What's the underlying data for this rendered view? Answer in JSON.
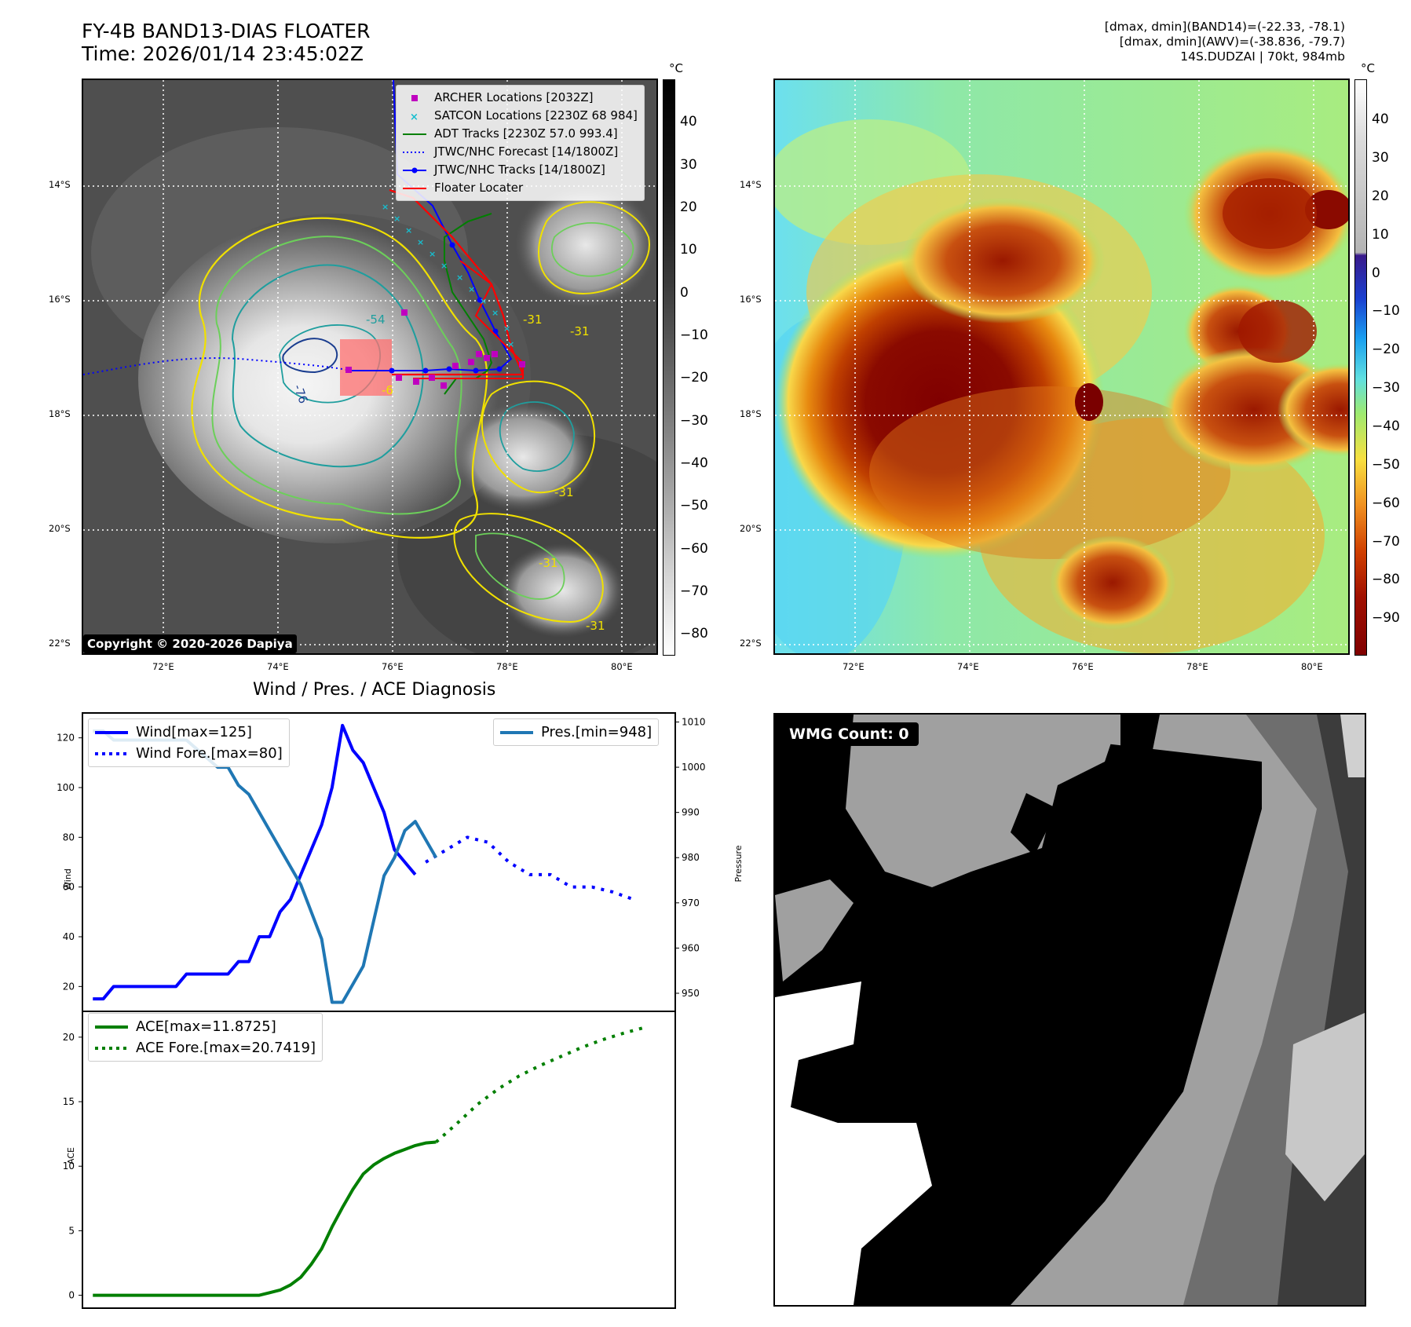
{
  "header": {
    "title_line1": "FY-4B BAND13-DIAS FLOATER",
    "title_line2": "Time: 2026/01/14 23:45:02Z",
    "info_line1": "[dmax, dmin](BAND14)=(-22.33, -78.1)",
    "info_line2": "[dmax, dmin](AWV)=(-38.836, -79.7)",
    "info_line3": "14S.DUDZAI | 70kt, 984mb"
  },
  "map": {
    "lat_labels": [
      "14°S",
      "16°S",
      "18°S",
      "20°S",
      "22°S"
    ],
    "lon_labels": [
      "72°E",
      "74°E",
      "76°E",
      "78°E",
      "80°E"
    ],
    "copyright": "Copyright © 2020-2026 Dapiya",
    "contour_labels": [
      "-54",
      "-76",
      "-31",
      "-31",
      "-31",
      "-31",
      "-31",
      "-6"
    ],
    "legend": [
      {
        "label": "ARCHER Locations [2032Z]",
        "color": "#bf00bf"
      },
      {
        "label": "SATCON Locations [2230Z 68 984]",
        "color": "#17becf"
      },
      {
        "label": "ADT Tracks [2230Z 57.0 993.4]",
        "color": "#007f00"
      },
      {
        "label": "JTWC/NHC Forecast [14/1800Z]",
        "color": "#0000ff"
      },
      {
        "label": "JTWC/NHC Tracks [14/1800Z]",
        "color": "#0000ff"
      },
      {
        "label": "Floater Locater",
        "color": "#ff0000"
      }
    ]
  },
  "colorbar_left": {
    "unit": "°C",
    "ticks": [
      "40",
      "30",
      "20",
      "10",
      "0",
      "−10",
      "−20",
      "−30",
      "−40",
      "−50",
      "−60",
      "−70",
      "−80"
    ]
  },
  "colorbar_right": {
    "unit": "°C",
    "ticks": [
      "40",
      "30",
      "20",
      "10",
      "0",
      "−10",
      "−20",
      "−30",
      "−40",
      "−50",
      "−60",
      "−70",
      "−80",
      "−90"
    ]
  },
  "diagnosis_title": "Wind / Pres. / ACE Diagnosis",
  "wmg": {
    "label": "WMG Count: 0"
  },
  "chart_data": [
    {
      "type": "line",
      "title": "Wind / Pres. / ACE Diagnosis",
      "ylabel": "Wind",
      "y2label": "Pressure",
      "ylim": [
        10,
        130
      ],
      "y2lim": [
        946,
        1012
      ],
      "yticks": [
        20,
        40,
        60,
        80,
        100,
        120
      ],
      "y2ticks": [
        950,
        960,
        970,
        980,
        990,
        1000,
        1010
      ],
      "series": [
        {
          "name": "Wind[max=125]",
          "color": "#0000ff",
          "style": "solid",
          "axis": "left",
          "x": [
            0,
            1,
            2,
            3,
            4,
            5,
            6,
            7,
            8,
            9,
            10,
            11,
            12,
            13,
            14,
            15,
            16,
            17,
            18,
            19,
            20,
            21,
            22,
            23,
            24,
            25,
            26,
            27,
            28,
            29,
            30,
            31
          ],
          "y": [
            15,
            15,
            20,
            20,
            20,
            20,
            20,
            20,
            20,
            25,
            25,
            25,
            25,
            25,
            30,
            30,
            40,
            40,
            50,
            55,
            65,
            75,
            85,
            100,
            125,
            115,
            110,
            100,
            90,
            75,
            70,
            65
          ]
        },
        {
          "name": "Wind Fore.[max=80]",
          "color": "#0000ff",
          "style": "dotted",
          "axis": "left",
          "x": [
            32,
            34,
            36,
            38,
            40,
            42,
            44,
            46,
            48,
            50,
            52
          ],
          "y": [
            70,
            75,
            80,
            78,
            70,
            65,
            65,
            60,
            60,
            58,
            55
          ]
        },
        {
          "name": "Pres.[min=948]",
          "color": "#1f77b4",
          "style": "solid",
          "axis": "right",
          "x": [
            0,
            1,
            2,
            3,
            4,
            5,
            6,
            7,
            8,
            9,
            10,
            11,
            12,
            13,
            14,
            15,
            16,
            17,
            18,
            19,
            20,
            21,
            22,
            23,
            24,
            25,
            26,
            27,
            28,
            29,
            30,
            31,
            32,
            33
          ],
          "y": [
            1008,
            1008,
            1006,
            1006,
            1006,
            1006,
            1006,
            1006,
            1006,
            1006,
            1004,
            1002,
            1000,
            1000,
            996,
            994,
            990,
            986,
            982,
            978,
            974,
            968,
            962,
            948,
            948,
            952,
            956,
            966,
            976,
            980,
            986,
            988,
            984,
            980
          ]
        }
      ],
      "legend": [
        "Wind[max=125]",
        "Wind Fore.[max=80]",
        "Pres.[min=948]"
      ]
    },
    {
      "type": "line",
      "ylabel": "ACE",
      "ylim": [
        -1,
        22
      ],
      "yticks": [
        0,
        5,
        10,
        15,
        20
      ],
      "series": [
        {
          "name": "ACE[max=11.8725]",
          "color": "#007f00",
          "style": "solid",
          "x": [
            0,
            4,
            8,
            12,
            16,
            17,
            18,
            19,
            20,
            21,
            22,
            23,
            24,
            25,
            26,
            27,
            28,
            29,
            30,
            31,
            32,
            33
          ],
          "y": [
            0,
            0,
            0,
            0,
            0,
            0.2,
            0.4,
            0.8,
            1.4,
            2.4,
            3.6,
            5.3,
            6.8,
            8.2,
            9.4,
            10.1,
            10.6,
            11.0,
            11.3,
            11.6,
            11.8,
            11.87
          ]
        },
        {
          "name": "ACE Fore.[max=20.7419]",
          "color": "#007f00",
          "style": "dotted",
          "x": [
            33,
            35,
            37,
            39,
            41,
            43,
            45,
            47,
            49,
            51,
            53
          ],
          "y": [
            11.87,
            13.3,
            14.8,
            16.0,
            17.0,
            17.8,
            18.5,
            19.2,
            19.8,
            20.3,
            20.74
          ]
        }
      ],
      "legend": [
        "ACE[max=11.8725]",
        "ACE Fore.[max=20.7419]"
      ]
    }
  ]
}
